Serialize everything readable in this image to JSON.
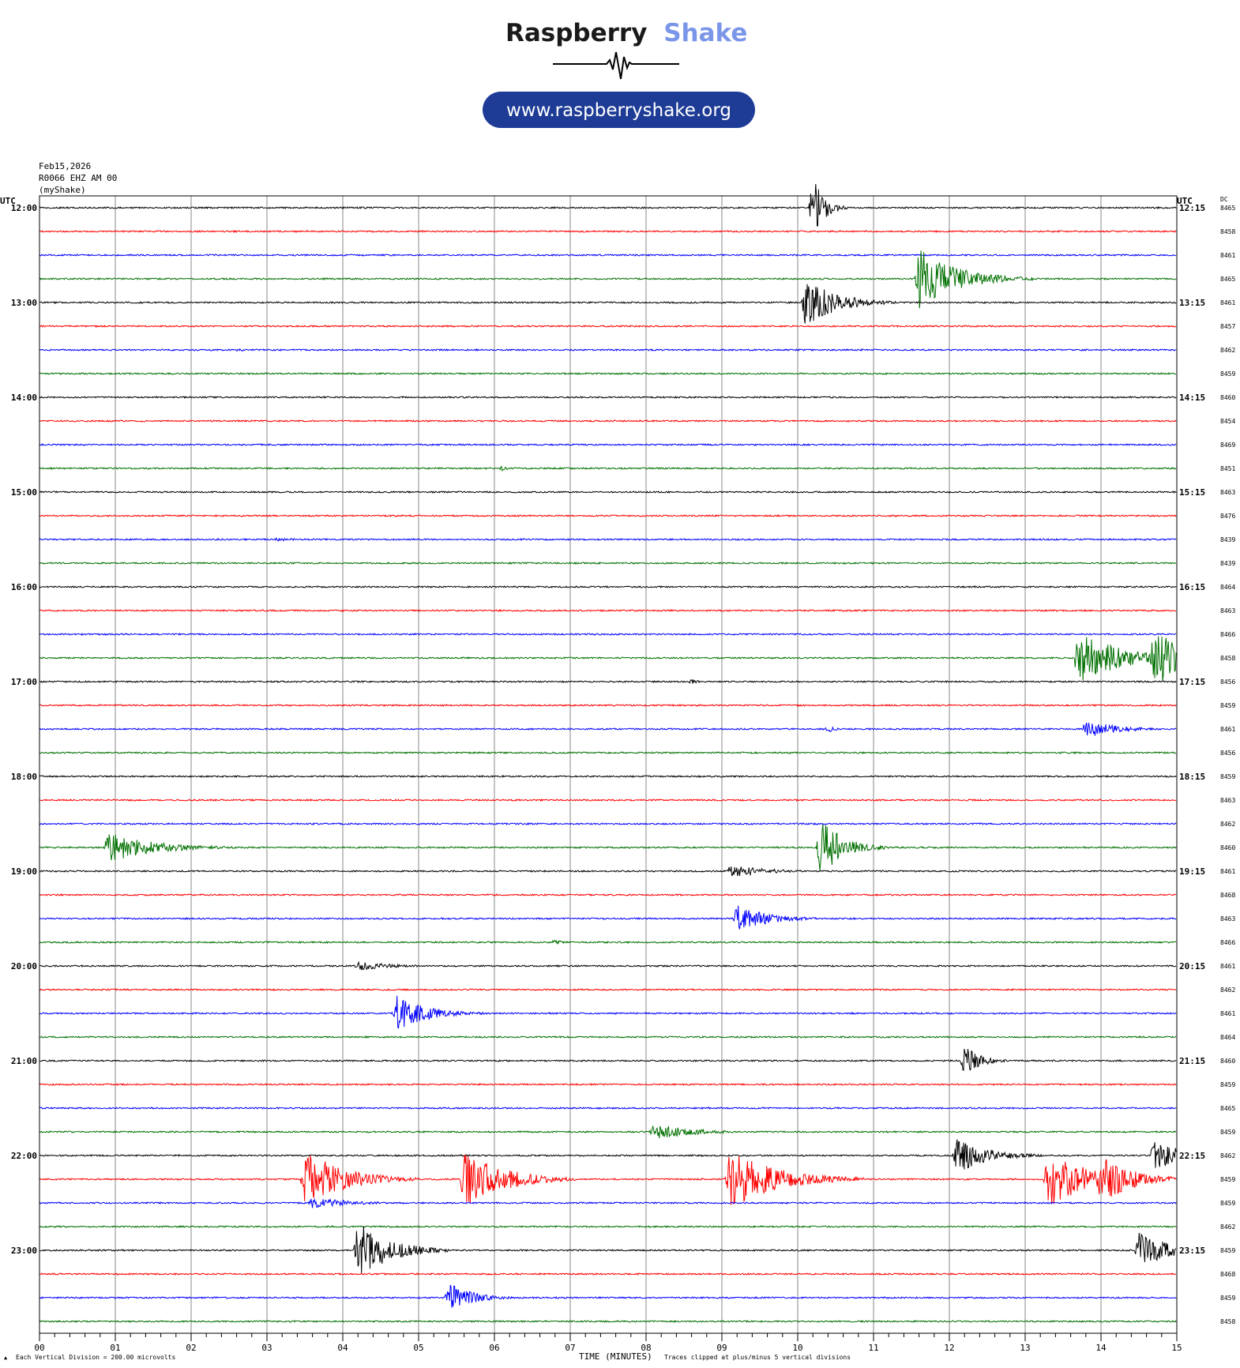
{
  "logo": {
    "brand_part1": "Raspberry",
    "brand_part2": "Shake",
    "url": "www.raspberryshake.org",
    "brand_color": "#1a1a1a",
    "accent_color": "#7b96e8",
    "pill_color": "#1e3c96"
  },
  "header": {
    "date": "Feb15,2026",
    "station": "R0066 EHZ AM 00",
    "source": "(myShake)"
  },
  "footer": {
    "scale_note": "Each Vertical Division =  200.00 microvolts",
    "xlabel": "TIME (MINUTES)",
    "clip_note": "Traces clipped at plus/minus 5 vertical divisions"
  },
  "chart_data": {
    "type": "line",
    "title": "",
    "xlabel": "TIME (MINUTES)",
    "xlim": [
      0,
      15
    ],
    "x_ticks": [
      "00",
      "01",
      "02",
      "03",
      "04",
      "05",
      "06",
      "07",
      "08",
      "09",
      "10",
      "11",
      "12",
      "13",
      "14",
      "15"
    ],
    "left_axis_label": "UTC",
    "right_axis_label": "UTC",
    "dc_label": "DC",
    "trace_colors": [
      "#000000",
      "#ff0000",
      "#0000ff",
      "#007000"
    ],
    "left_time_labels": [
      "12:00",
      "13:00",
      "14:00",
      "15:00",
      "16:00",
      "17:00",
      "18:00",
      "19:00",
      "20:00",
      "21:00",
      "22:00",
      "23:00"
    ],
    "right_time_labels": [
      "12:15",
      "13:15",
      "14:15",
      "15:15",
      "16:15",
      "17:15",
      "18:15",
      "19:15",
      "20:15",
      "21:15",
      "22:15",
      "23:15"
    ],
    "dc_values": [
      "8465",
      "8458",
      "8461",
      "8465",
      "8461",
      "8457",
      "8462",
      "8459",
      "8460",
      "8454",
      "8469",
      "8451",
      "8463",
      "8476",
      "8439",
      "8439",
      "8464",
      "8463",
      "8466",
      "8458",
      "8456",
      "8459",
      "8461",
      "8456",
      "8459",
      "8463",
      "8462",
      "8460",
      "8461",
      "8468",
      "8463",
      "8466",
      "8461",
      "8462",
      "8461",
      "8464",
      "8460",
      "8459",
      "8465",
      "8459",
      "8462",
      "8459",
      "8459",
      "8462",
      "8459",
      "8468",
      "8459",
      "8458"
    ],
    "traces": 48,
    "minutes_per_trace": 15,
    "events": [
      {
        "trace": 0,
        "minute": 10.2,
        "amplitude": 5,
        "duration": 0.15
      },
      {
        "trace": 3,
        "minute": 11.6,
        "amplitude": 5,
        "duration": 0.5
      },
      {
        "trace": 4,
        "minute": 10.1,
        "amplitude": 4,
        "duration": 0.4
      },
      {
        "trace": 6,
        "minute": 2.6,
        "amplitude": 0.4,
        "duration": 0.1
      },
      {
        "trace": 11,
        "minute": 6.1,
        "amplitude": 0.4,
        "duration": 0.1
      },
      {
        "trace": 14,
        "minute": 3.1,
        "amplitude": 0.3,
        "duration": 0.4
      },
      {
        "trace": 19,
        "minute": 13.7,
        "amplitude": 5,
        "duration": 0.5
      },
      {
        "trace": 19,
        "minute": 14.7,
        "amplitude": 5,
        "duration": 0.4
      },
      {
        "trace": 20,
        "minute": 8.6,
        "amplitude": 0.4,
        "duration": 0.1
      },
      {
        "trace": 22,
        "minute": 13.8,
        "amplitude": 1.5,
        "duration": 0.4
      },
      {
        "trace": 22,
        "minute": 10.4,
        "amplitude": 0.6,
        "duration": 0.1
      },
      {
        "trace": 27,
        "minute": 0.9,
        "amplitude": 2.5,
        "duration": 0.6
      },
      {
        "trace": 27,
        "minute": 10.3,
        "amplitude": 5,
        "duration": 0.3
      },
      {
        "trace": 28,
        "minute": 9.1,
        "amplitude": 1,
        "duration": 0.5
      },
      {
        "trace": 30,
        "minute": 9.2,
        "amplitude": 2.2,
        "duration": 0.4
      },
      {
        "trace": 31,
        "minute": 6.8,
        "amplitude": 0.5,
        "duration": 0.1
      },
      {
        "trace": 32,
        "minute": 4.2,
        "amplitude": 0.7,
        "duration": 0.5
      },
      {
        "trace": 34,
        "minute": 4.7,
        "amplitude": 3,
        "duration": 0.4
      },
      {
        "trace": 36,
        "minute": 12.2,
        "amplitude": 2.5,
        "duration": 0.2
      },
      {
        "trace": 39,
        "minute": 8.1,
        "amplitude": 1.3,
        "duration": 0.5
      },
      {
        "trace": 40,
        "minute": 12.1,
        "amplitude": 3,
        "duration": 0.4
      },
      {
        "trace": 40,
        "minute": 14.7,
        "amplitude": 2.5,
        "duration": 0.4
      },
      {
        "trace": 41,
        "minute": 3.5,
        "amplitude": 5,
        "duration": 0.5
      },
      {
        "trace": 41,
        "minute": 5.6,
        "amplitude": 5,
        "duration": 0.5
      },
      {
        "trace": 41,
        "minute": 9.1,
        "amplitude": 5,
        "duration": 0.6
      },
      {
        "trace": 41,
        "minute": 13.3,
        "amplitude": 5,
        "duration": 0.5
      },
      {
        "trace": 41,
        "minute": 14.0,
        "amplitude": 4,
        "duration": 0.4
      },
      {
        "trace": 42,
        "minute": 3.6,
        "amplitude": 1,
        "duration": 0.5
      },
      {
        "trace": 44,
        "minute": 4.2,
        "amplitude": 5,
        "duration": 0.4
      },
      {
        "trace": 44,
        "minute": 14.5,
        "amplitude": 3,
        "duration": 0.4
      },
      {
        "trace": 46,
        "minute": 5.4,
        "amplitude": 2.5,
        "duration": 0.3
      }
    ]
  }
}
